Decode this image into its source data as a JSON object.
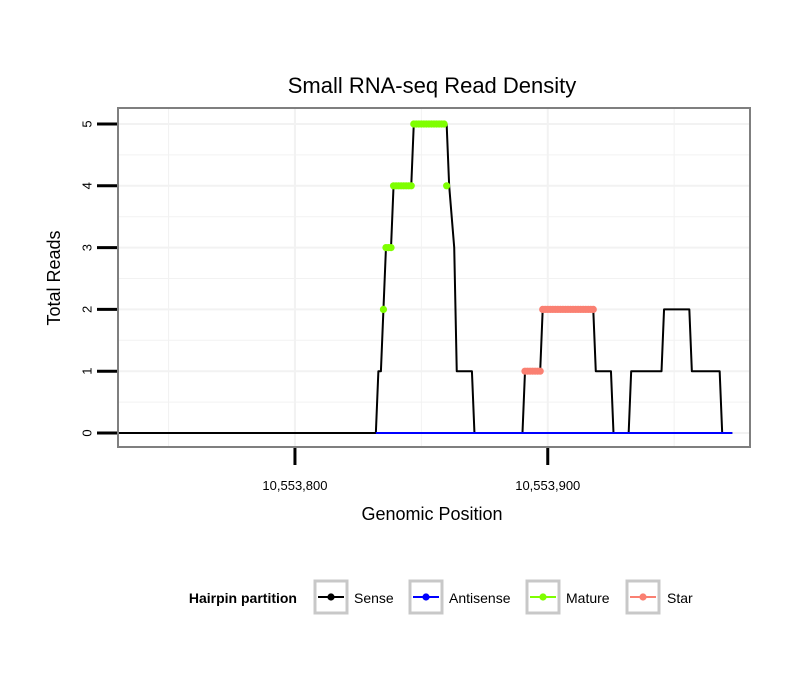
{
  "chart_data": {
    "type": "line",
    "title": "Small RNA-seq Read Density",
    "xlabel": "Genomic Position",
    "ylabel": "Total Reads",
    "xlim": [
      10553730,
      10553980
    ],
    "ylim": [
      0,
      5
    ],
    "x_ticks": [
      {
        "value": 10553800,
        "label": "10,553,800"
      },
      {
        "value": 10553900,
        "label": "10,553,900"
      }
    ],
    "y_ticks": [
      {
        "value": 0,
        "label": "0"
      },
      {
        "value": 1,
        "label": "1"
      },
      {
        "value": 2,
        "label": "2"
      },
      {
        "value": 3,
        "label": "3"
      },
      {
        "value": 4,
        "label": "4"
      },
      {
        "value": 5,
        "label": "5"
      }
    ],
    "legend": {
      "title": "Hairpin partition",
      "position": "bottom",
      "entries": [
        {
          "name": "Sense",
          "color": "#000000"
        },
        {
          "name": "Antisense",
          "color": "#0000ff"
        },
        {
          "name": "Mature",
          "color": "#7fff00"
        },
        {
          "name": "Star",
          "color": "#fa8072"
        }
      ]
    },
    "series": [
      {
        "name": "Sense",
        "color": "#000000",
        "x": [
          10553730,
          10553832,
          10553833,
          10553834,
          10553835,
          10553836,
          10553838,
          10553839,
          10553846,
          10553847,
          10553860,
          10553861,
          10553863,
          10553864,
          10553870,
          10553871,
          10553890,
          10553891,
          10553897,
          10553898,
          10553918,
          10553919,
          10553925,
          10553926,
          10553932,
          10553933,
          10553945,
          10553946,
          10553956,
          10553957,
          10553968,
          10553969,
          10553973
        ],
        "values": [
          0,
          0,
          1,
          1,
          2,
          3,
          3,
          4,
          4,
          5,
          5,
          4,
          3,
          1,
          1,
          0,
          0,
          1,
          1,
          2,
          2,
          1,
          1,
          0,
          0,
          1,
          1,
          2,
          2,
          1,
          1,
          0,
          0
        ]
      },
      {
        "name": "Antisense",
        "color": "#0000ff",
        "x": [
          10553832,
          10553973
        ],
        "values": [
          0,
          0
        ]
      },
      {
        "name": "Mature",
        "color": "#7fff00",
        "x": [
          10553835,
          10553836,
          10553837,
          10553838,
          10553839,
          10553840,
          10553841,
          10553842,
          10553843,
          10553844,
          10553845,
          10553846,
          10553847,
          10553848,
          10553849,
          10553850,
          10553851,
          10553852,
          10553853,
          10553854,
          10553855,
          10553856,
          10553857,
          10553858,
          10553859,
          10553860
        ],
        "values": [
          2,
          3,
          3,
          3,
          4,
          4,
          4,
          4,
          4,
          4,
          4,
          4,
          5,
          5,
          5,
          5,
          5,
          5,
          5,
          5,
          5,
          5,
          5,
          5,
          5,
          4
        ]
      },
      {
        "name": "Star",
        "color": "#fa8072",
        "x": [
          10553891,
          10553892,
          10553893,
          10553894,
          10553895,
          10553896,
          10553897,
          10553898,
          10553899,
          10553900,
          10553901,
          10553902,
          10553903,
          10553904,
          10553905,
          10553906,
          10553907,
          10553908,
          10553909,
          10553910,
          10553911,
          10553912,
          10553913,
          10553914,
          10553915,
          10553916,
          10553917,
          10553918
        ],
        "values": [
          1,
          1,
          1,
          1,
          1,
          1,
          1,
          2,
          2,
          2,
          2,
          2,
          2,
          2,
          2,
          2,
          2,
          2,
          2,
          2,
          2,
          2,
          2,
          2,
          2,
          2,
          2,
          2
        ]
      }
    ]
  }
}
